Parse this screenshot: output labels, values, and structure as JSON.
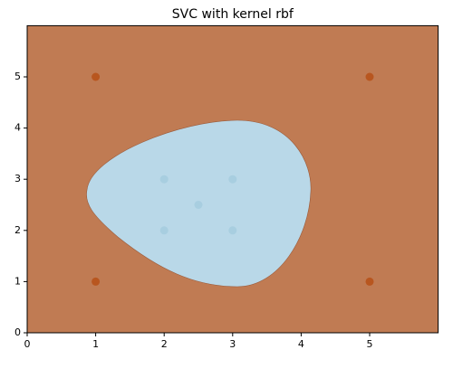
{
  "chart_data": {
    "type": "scatter",
    "title": "SVC with kernel rbf",
    "xlim": [
      0,
      6
    ],
    "ylim": [
      0,
      6
    ],
    "xticks": [
      0,
      1,
      2,
      3,
      4,
      5
    ],
    "yticks": [
      0,
      1,
      2,
      3,
      4,
      5
    ],
    "background_color": "#c07b53",
    "region_color": "#b9d8e8",
    "series": [
      {
        "color": "#b8561f",
        "x": [
          1,
          1,
          5,
          5
        ],
        "values": [
          1,
          5,
          1,
          5
        ]
      },
      {
        "color": "#a8cee0",
        "x": [
          2,
          2,
          3,
          3,
          2.5
        ],
        "values": [
          2,
          3,
          2,
          3,
          2.5
        ]
      }
    ]
  }
}
